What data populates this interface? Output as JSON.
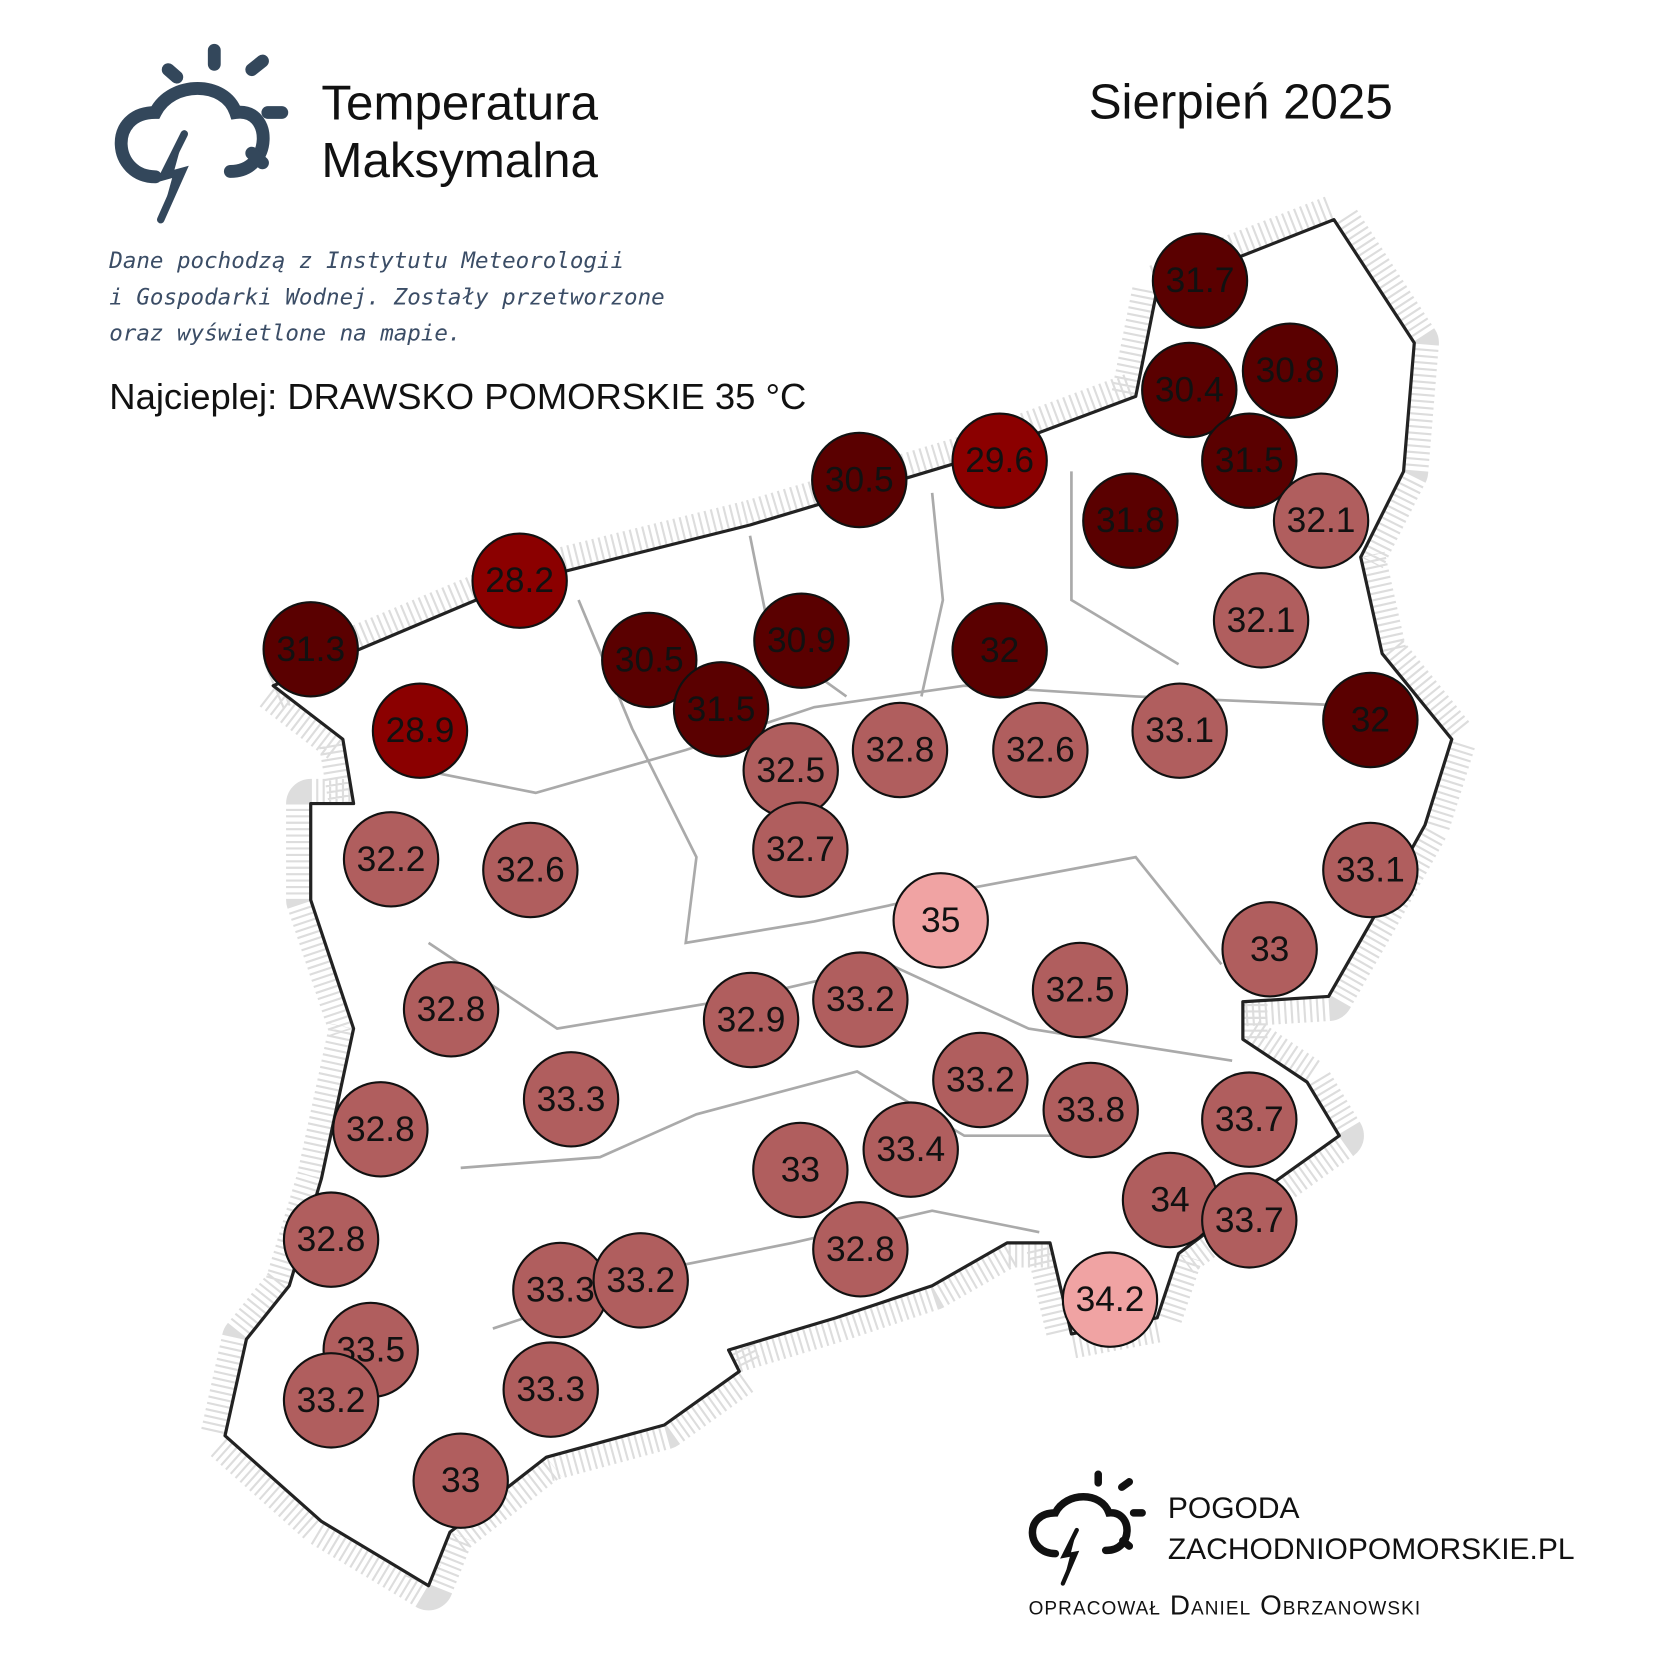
{
  "header": {
    "title": [
      "Temperatura",
      "Maksymalna"
    ],
    "period": "Sierpień 2025",
    "note": [
      "Dane pochodzą z Instytutu Meteorologii",
      "i Gospodarki Wodnej. Zostały przetworzone",
      "oraz wyświetlone na mapie."
    ],
    "hottest": "Najcieplej: DRAWSKO POMORSKIE 35 °C"
  },
  "stations": [
    {
      "value": 31.7,
      "color": "#5a0000"
    },
    {
      "value": 30.8,
      "color": "#5a0000"
    },
    {
      "value": 30.4,
      "color": "#5a0000"
    },
    {
      "value": 31.5,
      "color": "#5a0000"
    },
    {
      "value": 29.6,
      "color": "#8b0000"
    },
    {
      "value": 30.5,
      "color": "#5a0000"
    },
    {
      "value": 31.8,
      "color": "#5a0000"
    },
    {
      "value": 32.1,
      "color": "#b05e5e"
    },
    {
      "value": 28.2,
      "color": "#8b0000"
    },
    {
      "value": 32.1,
      "color": "#b05e5e"
    },
    {
      "value": 31.3,
      "color": "#5a0000"
    },
    {
      "value": 30.5,
      "color": "#5a0000"
    },
    {
      "value": 30.9,
      "color": "#5a0000"
    },
    {
      "value": 32,
      "color": "#5a0000"
    },
    {
      "value": 31.5,
      "color": "#5a0000"
    },
    {
      "value": 28.9,
      "color": "#8b0000"
    },
    {
      "value": 32.5,
      "color": "#b05e5e"
    },
    {
      "value": 32.8,
      "color": "#b05e5e"
    },
    {
      "value": 32.6,
      "color": "#b05e5e"
    },
    {
      "value": 33.1,
      "color": "#b05e5e"
    },
    {
      "value": 32,
      "color": "#5a0000"
    },
    {
      "value": 32.2,
      "color": "#b05e5e"
    },
    {
      "value": 32.6,
      "color": "#b05e5e"
    },
    {
      "value": 32.7,
      "color": "#b05e5e"
    },
    {
      "value": 33.1,
      "color": "#b05e5e"
    },
    {
      "value": 35,
      "color": "#f0a3a3"
    },
    {
      "value": 33,
      "color": "#b05e5e"
    },
    {
      "value": 32.8,
      "color": "#b05e5e"
    },
    {
      "value": 32.9,
      "color": "#b05e5e"
    },
    {
      "value": 33.2,
      "color": "#b05e5e"
    },
    {
      "value": 32.5,
      "color": "#b05e5e"
    },
    {
      "value": 33.3,
      "color": "#b05e5e"
    },
    {
      "value": 33.2,
      "color": "#b05e5e"
    },
    {
      "value": 33.8,
      "color": "#b05e5e"
    },
    {
      "value": 33.7,
      "color": "#b05e5e"
    },
    {
      "value": 32.8,
      "color": "#b05e5e"
    },
    {
      "value": 33,
      "color": "#b05e5e"
    },
    {
      "value": 33.4,
      "color": "#b05e5e"
    },
    {
      "value": 34,
      "color": "#b05e5e"
    },
    {
      "value": 33.7,
      "color": "#b05e5e"
    },
    {
      "value": 32.8,
      "color": "#b05e5e"
    },
    {
      "value": 32.8,
      "color": "#b05e5e"
    },
    {
      "value": 33.3,
      "color": "#b05e5e"
    },
    {
      "value": 33.2,
      "color": "#b05e5e"
    },
    {
      "value": 34.2,
      "color": "#f0a3a3"
    },
    {
      "value": 33.5,
      "color": "#b05e5e"
    },
    {
      "value": 33.2,
      "color": "#b05e5e"
    },
    {
      "value": 33.3,
      "color": "#b05e5e"
    },
    {
      "value": 33,
      "color": "#b05e5e"
    }
  ],
  "footer": {
    "brand": [
      "POGODA",
      "ZACHODNIOPOMORSKIE.PL"
    ],
    "author": "opracował Daniel Obrzanowski"
  }
}
